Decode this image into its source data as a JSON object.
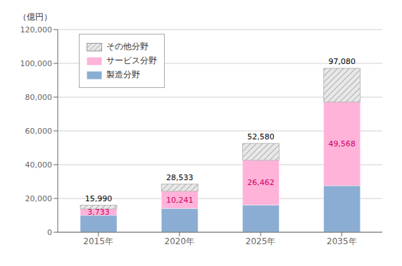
{
  "chart_data": {
    "type": "bar",
    "y_label": "（億円）",
    "categories": [
      "2015年",
      "2020年",
      "2025年",
      "2035年"
    ],
    "series": [
      {
        "name": "製造分野",
        "color": "#8badd3",
        "values": [
          10007,
          14042,
          16118,
          27512
        ]
      },
      {
        "name": "サービス分野",
        "color": "#ffb3d9",
        "values": [
          3733,
          10241,
          26462,
          49568
        ],
        "data_labels": true,
        "value_labels": [
          "3,733",
          "10,241",
          "26,462",
          "49,568"
        ]
      },
      {
        "name": "その他分野",
        "color": "#e8e8e8",
        "values": [
          2250,
          4250,
          10000,
          20000
        ]
      }
    ],
    "totals": [
      15990,
      28533,
      52580,
      97080
    ],
    "total_labels": [
      "15,990",
      "28,533",
      "52,580",
      "97,080"
    ],
    "stacked": true,
    "ylim": [
      0,
      120000
    ],
    "yticks": [
      0,
      {
        "value": 20000,
        "label": "20,000"
      },
      {
        "value": 40000,
        "label": "40,000"
      },
      {
        "value": 60000,
        "label": "60,000"
      },
      {
        "value": 80000,
        "label": "80,000"
      },
      {
        "value": 100000,
        "label": "100,000"
      },
      {
        "value": 120000,
        "label": "120,000"
      }
    ],
    "grid": true,
    "legend": "upper left"
  }
}
